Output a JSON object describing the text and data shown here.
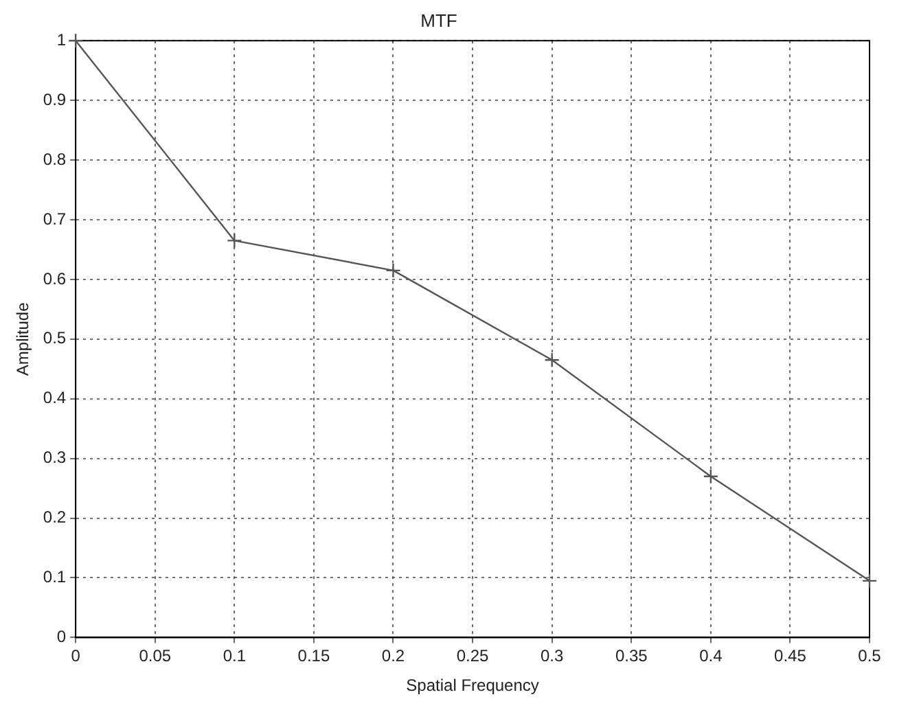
{
  "chart_data": {
    "type": "line",
    "title": "MTF",
    "xlabel": "Spatial Frequency",
    "ylabel": "Amplitude",
    "x": [
      0,
      0.1,
      0.2,
      0.3,
      0.4,
      0.5
    ],
    "series": [
      {
        "color": "#555555",
        "values": [
          1,
          0.665,
          0.615,
          0.465,
          0.27,
          0.095
        ]
      }
    ],
    "xlim": [
      0,
      0.5
    ],
    "xticks": [
      0,
      0.05,
      0.1,
      0.15,
      0.2,
      0.25,
      0.3,
      0.35,
      0.4,
      0.45,
      0.5
    ],
    "ylim": [
      0,
      1
    ],
    "yticks": [
      0,
      0.1,
      0.2,
      0.3,
      0.4,
      0.5,
      0.6,
      0.7,
      0.8,
      0.9,
      1
    ],
    "grid": true,
    "legend": false,
    "marker": "cross",
    "line_style": "solid"
  }
}
